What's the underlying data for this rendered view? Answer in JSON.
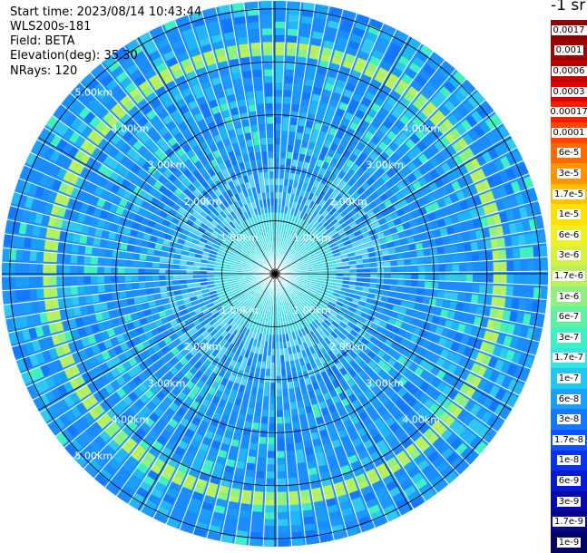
{
  "header": {
    "start_time": "Start time: 2023/08/14 10:43:44",
    "device": "WLS200s-181",
    "field": "Field: BETA",
    "elevation": "Elevation(deg): 35.30",
    "nrays": "NRays: 120"
  },
  "colorbar": {
    "unit": "-1 sr",
    "labels": [
      "0.0017",
      "0.001",
      "0.0006",
      "0.0003",
      "0.00017",
      "0.0001",
      "6e-5",
      "3e-5",
      "1.7e-5",
      "1e-5",
      "6e-6",
      "3e-6",
      "1.7e-6",
      "1e-6",
      "6e-7",
      "3e-7",
      "1.7e-7",
      "1e-7",
      "6e-8",
      "3e-8",
      "1.7e-8",
      "1e-8",
      "6e-9",
      "3e-9",
      "1.7e-9",
      "1e-9"
    ],
    "colors": [
      "#8b0000",
      "#a00000",
      "#c00000",
      "#e00000",
      "#ff1a00",
      "#ff4500",
      "#ff6a00",
      "#ff9400",
      "#ffc000",
      "#ffe000",
      "#f0f020",
      "#d8f040",
      "#b8f060",
      "#90f080",
      "#60f0a0",
      "#40f0c0",
      "#30e8e0",
      "#20c8f0",
      "#1aa0f8",
      "#1478ff",
      "#1050ff",
      "#0a30f0",
      "#0818d0",
      "#0808b0",
      "#05058c",
      "#030366"
    ]
  },
  "chart_data": {
    "type": "heatmap",
    "projection": "polar (PPI scan)",
    "quantity": "BETA",
    "nrays": 120,
    "range_rings": [
      "1.00km",
      "2.00km",
      "3.00km",
      "4.00km",
      "5.00km"
    ],
    "range_ring_values_km": [
      1,
      2,
      3,
      4,
      5
    ],
    "max_range_km": 5.15,
    "background_color": "#1a8cff",
    "feature_ring": {
      "range_km": 4.2,
      "color": "#b8f060",
      "description_label": ""
    },
    "near_range_color": "#30e8e0",
    "scale": "log",
    "value_range": [
      1e-09,
      0.0017
    ]
  }
}
